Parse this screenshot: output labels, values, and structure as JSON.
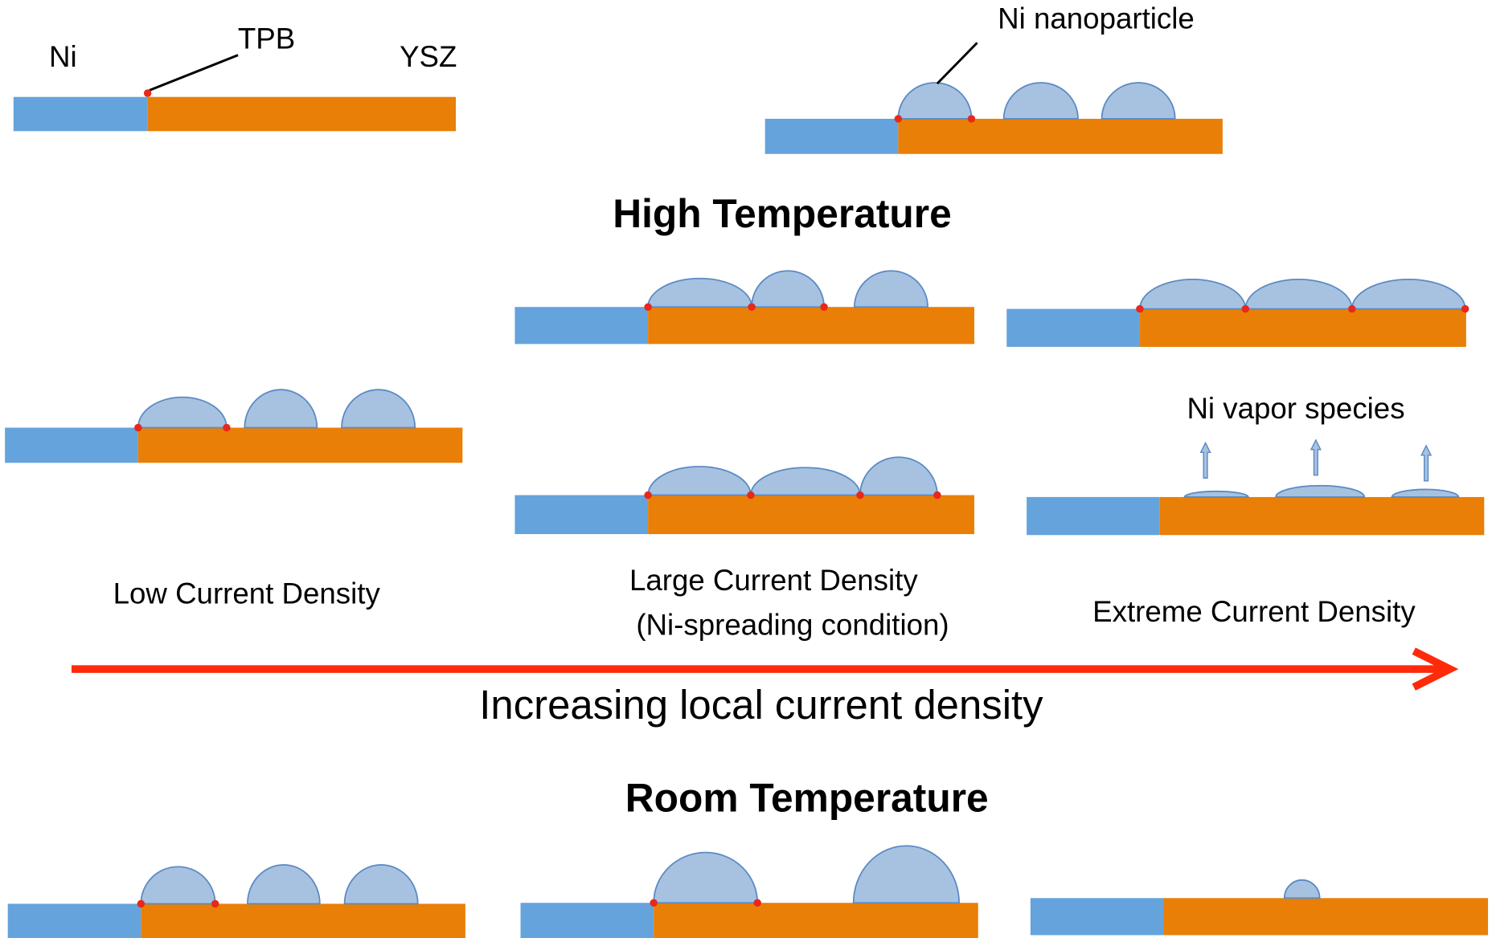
{
  "labels": {
    "ni": "Ni",
    "tpb": "TPB",
    "ysz": "YSZ",
    "ni_nanoparticle": "Ni nanoparticle",
    "high_temperature": "High Temperature",
    "ni_vapor_species": "Ni vapor species",
    "low_current_density": "Low Current Density",
    "large_current_density": "Large Current Density",
    "ni_spreading_condition": "(Ni-spreading condition)",
    "extreme_current_density": "Extreme Current Density",
    "axis_label": "Increasing local current density",
    "room_temperature": "Room Temperature"
  }
}
